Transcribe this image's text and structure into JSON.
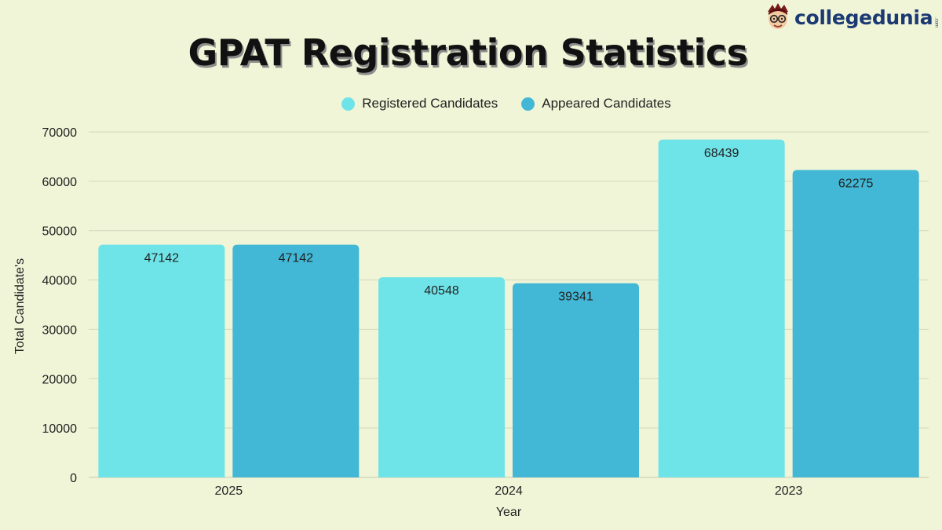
{
  "title": "GPAT Registration Statistics",
  "logo": {
    "text": "collegedunia",
    "suffix": ".com"
  },
  "colors": {
    "background": "#f1f5d7",
    "registered": "#6fe4e8",
    "appeared": "#42b8d6",
    "grid": "#d2d7bd"
  },
  "chart_data": {
    "type": "bar",
    "categories": [
      "2025",
      "2024",
      "2023"
    ],
    "series": [
      {
        "name": "Registered Candidates",
        "values": [
          47142,
          40548,
          68439
        ],
        "color": "#6fe4e8"
      },
      {
        "name": "Appeared Candidates",
        "values": [
          47142,
          39341,
          62275
        ],
        "color": "#42b8d6"
      }
    ],
    "xlabel": "Year",
    "ylabel": "Total Candidate's",
    "ylim": [
      0,
      70000
    ],
    "yticks": [
      0,
      10000,
      20000,
      30000,
      40000,
      50000,
      60000,
      70000
    ],
    "grid": true,
    "legend": "top-center",
    "data_labels": true
  }
}
